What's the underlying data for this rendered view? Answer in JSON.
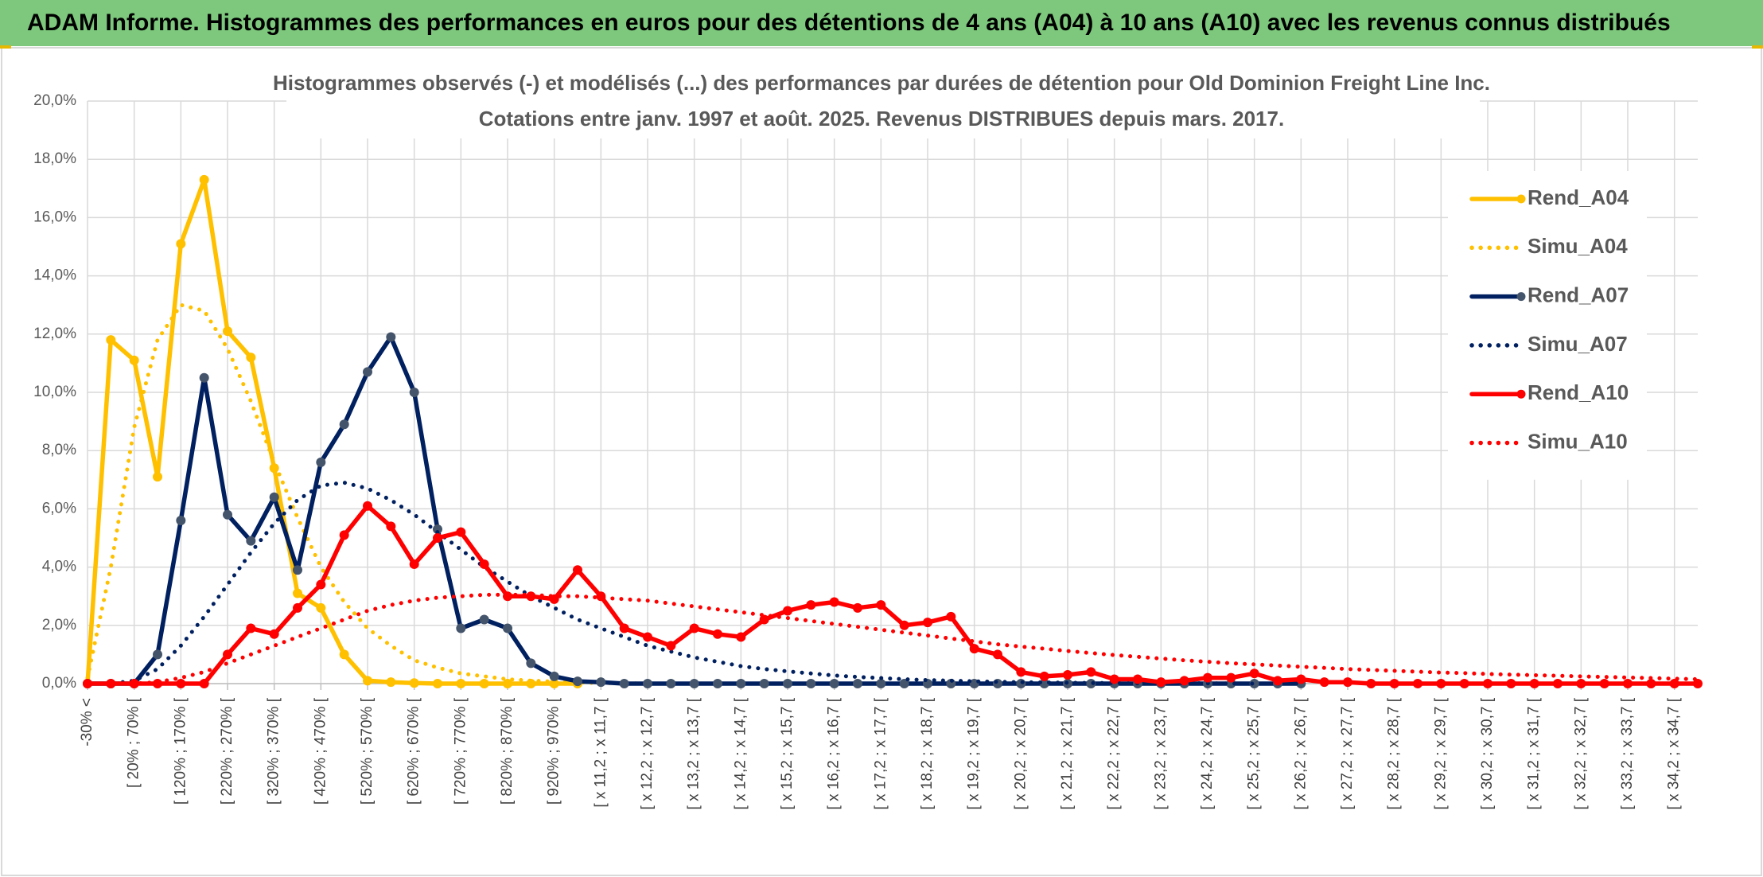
{
  "chart_data": {
    "type": "line",
    "header": "ADAM Informe. Histogrammes des performances en euros pour des détentions de 4 ans (A04) à 10 ans (A10) avec les revenus connus distribués",
    "title": "Histogrammes observés (-) et modélisés (...) des performances par durées de détention pour Old Dominion Freight Line Inc.",
    "subtitle": "Cotations entre janv. 1997 et août. 2025. Revenus DISTRIBUES depuis mars. 2017.",
    "categories": [
      "-30% <",
      null,
      "[ 20% ; 70% [",
      null,
      "[ 120% ; 170% [",
      null,
      "[ 220% ; 270% [",
      null,
      "[ 320% ; 370% [",
      null,
      "[ 420% ; 470% [",
      null,
      "[ 520% ; 570% [",
      null,
      "[ 620% ; 670% [",
      null,
      "[ 720% ; 770% [",
      null,
      "[ 820% ; 870% [",
      null,
      "[ 920% ; 970% [",
      null,
      "[ x 11,2 ; x 11,7 [",
      null,
      "[ x 12,2 ; x 12,7 [",
      null,
      "[ x 13,2 ; x 13,7 [",
      null,
      "[ x 14,2 ; x 14,7 [",
      null,
      "[ x 15,2 ; x 15,7 [",
      null,
      "[ x 16,2 ; x 16,7 [",
      null,
      "[ x 17,2 ; x 17,7 [",
      null,
      "[ x 18,2 ; x 18,7 [",
      null,
      "[ x 19,2 ; x 19,7 [",
      null,
      "[ x 20,2 ; x 20,7 [",
      null,
      "[ x 21,2 ; x 21,7 [",
      null,
      "[ x 22,2 ; x 22,7 [",
      null,
      "[ x 23,2 ; x 23,7 [",
      null,
      "[ x 24,2 ; x 24,7 [",
      null,
      "[ x 25,2 ; x 25,7 [",
      null,
      "[ x 26,2 ; x 26,7 [",
      null,
      "[ x 27,2 ; x 27,7 [",
      null,
      "[ x 28,2 ; x 28,7 [",
      null,
      "[ x 29,2 ; x 29,7 [",
      null,
      "[ x 30,2 ; x 30,7 [",
      null,
      "[ x 31,2 ; x 31,7 [",
      null,
      "[ x 32,2 ; x 32,7 [",
      null,
      "[ x 33,2 ; x 33,7 [",
      null,
      "[ x 34,2 ; x 34,7 [",
      null
    ],
    "ylim": [
      0,
      20
    ],
    "yticks": [
      {
        "value": 0,
        "label": "0,0%"
      },
      {
        "value": 2,
        "label": "2,0%"
      },
      {
        "value": 4,
        "label": "4,0%"
      },
      {
        "value": 6,
        "label": "6,0%"
      },
      {
        "value": 8,
        "label": "8,0%"
      },
      {
        "value": 10,
        "label": "10,0%"
      },
      {
        "value": 12,
        "label": "12,0%"
      },
      {
        "value": 14,
        "label": "14,0%"
      },
      {
        "value": 16,
        "label": "16,0%"
      },
      {
        "value": 18,
        "label": "18,0%"
      },
      {
        "value": 20,
        "label": "20,0%"
      }
    ],
    "grid": true,
    "legend": "right",
    "series": [
      {
        "name": "Rend_A04",
        "color": "#ffc000",
        "dash": "solid",
        "markers": true,
        "marker_color": "#ffc000",
        "values": [
          0,
          11.8,
          11.1,
          7.1,
          15.1,
          17.3,
          12.1,
          11.2,
          7.4,
          3.1,
          2.6,
          1.0,
          0.1,
          0.05,
          0.02,
          0,
          0,
          0,
          0,
          0,
          0,
          0,
          null,
          null,
          null,
          null,
          null,
          null,
          null,
          null,
          null,
          null,
          null,
          null,
          null,
          null,
          null,
          null,
          null,
          null,
          null,
          null,
          null,
          null,
          null,
          null,
          null,
          null,
          null,
          null,
          null,
          null,
          null,
          null,
          null,
          null,
          null,
          null,
          null,
          null,
          null,
          null,
          null,
          null,
          null,
          null,
          null,
          null,
          null,
          null
        ]
      },
      {
        "name": "Simu_A04",
        "color": "#ffc000",
        "dash": "dot",
        "markers": false,
        "values": [
          0.2,
          4,
          8.8,
          11.8,
          13.0,
          12.8,
          11.5,
          9.7,
          7.6,
          5.7,
          4.0,
          2.8,
          1.9,
          1.3,
          0.8,
          0.55,
          0.35,
          0.25,
          0.15,
          0.1,
          0.07,
          0.04,
          0.02,
          0.01,
          0,
          0,
          0,
          null,
          null,
          null,
          null,
          null,
          null,
          null,
          null,
          null,
          null,
          null,
          null,
          null,
          null,
          null,
          null,
          null,
          null,
          null,
          null,
          null,
          null,
          null,
          null,
          null,
          null,
          null,
          null,
          null,
          null,
          null,
          null,
          null,
          null,
          null,
          null,
          null,
          null,
          null,
          null,
          null,
          null,
          null
        ]
      },
      {
        "name": "Rend_A07",
        "color": "#002060",
        "dash": "solid",
        "markers": true,
        "marker_color": "#44546a",
        "values": [
          0,
          0,
          0,
          1.0,
          5.6,
          10.5,
          5.8,
          4.9,
          6.4,
          3.9,
          7.6,
          8.9,
          10.7,
          11.9,
          10.0,
          5.3,
          1.9,
          2.2,
          1.9,
          0.7,
          0.25,
          0.08,
          0.05,
          0,
          0,
          0,
          0,
          0,
          0,
          0,
          0,
          0,
          0,
          0,
          0,
          0,
          0,
          0,
          0,
          0,
          0,
          0,
          0,
          0,
          0,
          0,
          0,
          0,
          0,
          0,
          0,
          0,
          0,
          null,
          null,
          null,
          null,
          null,
          null,
          null,
          null,
          null,
          null,
          null,
          null,
          null,
          null,
          null,
          null,
          null
        ]
      },
      {
        "name": "Simu_A07",
        "color": "#002060",
        "dash": "dot",
        "markers": false,
        "values": [
          0,
          0,
          0.1,
          0.5,
          1.3,
          2.3,
          3.4,
          4.5,
          5.5,
          6.3,
          6.8,
          6.9,
          6.7,
          6.3,
          5.8,
          5.2,
          4.6,
          4.0,
          3.5,
          3.0,
          2.6,
          2.2,
          1.9,
          1.6,
          1.3,
          1.1,
          0.9,
          0.75,
          0.6,
          0.5,
          0.42,
          0.35,
          0.28,
          0.23,
          0.19,
          0.15,
          0.12,
          0.1,
          0.08,
          0.06,
          0.05,
          0.04,
          0.03,
          0.02,
          0.02,
          0.01,
          0.01,
          0.01,
          0.01,
          0,
          0,
          0,
          0,
          null,
          null,
          null,
          null,
          null,
          null,
          null,
          null,
          null,
          null,
          null,
          null,
          null,
          null,
          null,
          null,
          null
        ]
      },
      {
        "name": "Rend_A10",
        "color": "#ff0000",
        "dash": "solid",
        "markers": true,
        "marker_color": "#ff0000",
        "values": [
          0,
          0,
          0,
          0,
          0,
          0,
          1.0,
          1.9,
          1.7,
          2.6,
          3.4,
          5.1,
          6.1,
          5.4,
          4.1,
          5.0,
          5.2,
          4.1,
          3.0,
          3.0,
          2.9,
          3.9,
          3.0,
          1.9,
          1.6,
          1.3,
          1.9,
          1.7,
          1.6,
          2.2,
          2.5,
          2.7,
          2.8,
          2.6,
          2.7,
          2.0,
          2.1,
          2.3,
          1.2,
          1.0,
          0.4,
          0.25,
          0.3,
          0.4,
          0.15,
          0.15,
          0.05,
          0.1,
          0.2,
          0.2,
          0.35,
          0.1,
          0.15,
          0.05,
          0.05,
          0,
          0,
          0,
          0,
          0,
          0,
          0,
          0,
          0,
          0,
          0,
          0,
          0,
          0,
          0
        ]
      },
      {
        "name": "Simu_A10",
        "color": "#ff0000",
        "dash": "dot",
        "markers": false,
        "values": [
          0,
          0,
          0,
          0.05,
          0.2,
          0.4,
          0.7,
          1.0,
          1.3,
          1.6,
          1.9,
          2.2,
          2.5,
          2.7,
          2.85,
          2.95,
          3.0,
          3.05,
          3.05,
          3.05,
          3.0,
          3.0,
          2.95,
          2.9,
          2.85,
          2.75,
          2.65,
          2.55,
          2.45,
          2.35,
          2.25,
          2.15,
          2.05,
          1.95,
          1.85,
          1.75,
          1.65,
          1.55,
          1.45,
          1.35,
          1.27,
          1.2,
          1.12,
          1.05,
          0.98,
          0.92,
          0.86,
          0.8,
          0.75,
          0.7,
          0.66,
          0.62,
          0.58,
          0.54,
          0.5,
          0.47,
          0.44,
          0.41,
          0.38,
          0.36,
          0.33,
          0.31,
          0.29,
          0.27,
          0.25,
          0.23,
          0.21,
          0.19,
          0.17,
          0.15
        ]
      }
    ]
  }
}
